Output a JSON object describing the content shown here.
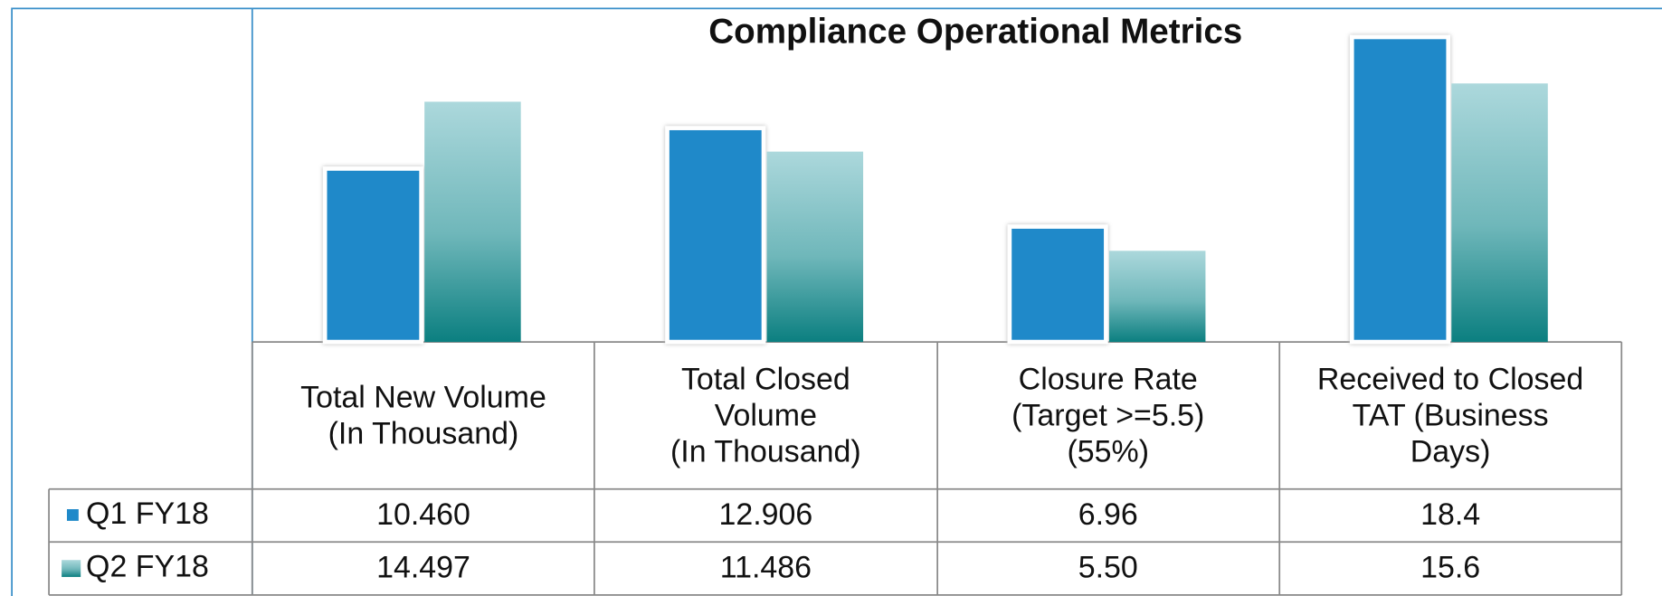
{
  "chart_data": {
    "type": "bar",
    "title": "Compliance Operational Metrics",
    "categories": [
      "Total New Volume\n(In Thousand)",
      "Total Closed\nVolume\n(In Thousand)",
      "Closure Rate\n(Target >=5.5)\n(55%)",
      "Received to Closed\nTAT (Business\nDays)"
    ],
    "series": [
      {
        "name": "Q1 FY18",
        "color": "#1f89c9",
        "values": [
          10.46,
          12.906,
          6.96,
          18.4
        ],
        "value_labels": [
          "10.460",
          "12.906",
          "6.96",
          "18.4"
        ]
      },
      {
        "name": "Q2 FY18",
        "color": "#0b7f80",
        "values": [
          14.497,
          11.486,
          5.5,
          15.6
        ],
        "value_labels": [
          "14.497",
          "11.486",
          "5.50",
          "15.6"
        ]
      }
    ]
  }
}
